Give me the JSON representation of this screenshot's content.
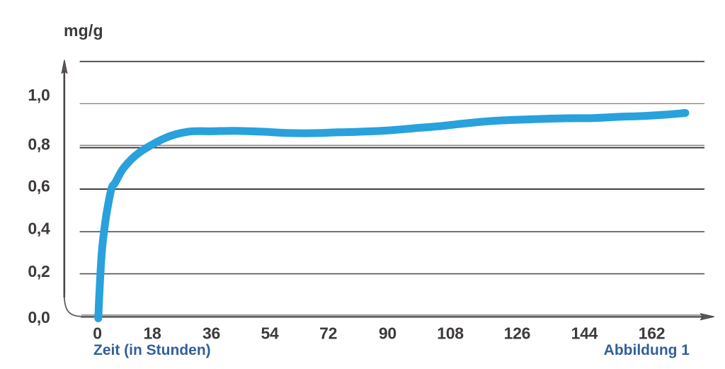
{
  "page": {
    "background_color": "#ffffff"
  },
  "chart_data": {
    "type": "line",
    "title": "",
    "ylabel": "mg/g",
    "xlabel": "Zeit (in Stunden)",
    "caption": "Abbildung 1",
    "x_ticks": [
      "0",
      "18",
      "36",
      "54",
      "72",
      "90",
      "108",
      "126",
      "144",
      "162"
    ],
    "x_tick_values": [
      0,
      18,
      36,
      54,
      72,
      90,
      108,
      126,
      144,
      162
    ],
    "y_ticks": [
      "0,0",
      "0,2",
      "0,4",
      "0,6",
      "0,8",
      "1,0"
    ],
    "y_tick_values": [
      0.0,
      0.2,
      0.4,
      0.6,
      0.8,
      1.0
    ],
    "xlim": [
      0,
      170
    ],
    "ylim": [
      0,
      1.2
    ],
    "grid": "horizontal",
    "gridline_values": [
      1.2,
      1.0,
      0.8,
      0.6,
      0.4,
      0.2,
      0.0
    ],
    "legend": "none",
    "series": [
      {
        "name": "mg/g",
        "color": "#29a1dc",
        "points": [
          [
            0.3,
            -0.009
          ],
          [
            0.6,
            0.09
          ],
          [
            1.0,
            0.2
          ],
          [
            1.5,
            0.31
          ],
          [
            2.2,
            0.4
          ],
          [
            3.1,
            0.49
          ],
          [
            4.6,
            0.6
          ],
          [
            5.9,
            0.63
          ],
          [
            8.7,
            0.7
          ],
          [
            13.7,
            0.77
          ],
          [
            22.1,
            0.84
          ],
          [
            29.0,
            0.869
          ],
          [
            36.3,
            0.871
          ],
          [
            43.3,
            0.873
          ],
          [
            51.6,
            0.869
          ],
          [
            59.2,
            0.863
          ],
          [
            66.9,
            0.862
          ],
          [
            74.9,
            0.866
          ],
          [
            82.0,
            0.869
          ],
          [
            90.3,
            0.875
          ],
          [
            97.6,
            0.885
          ],
          [
            105.0,
            0.895
          ],
          [
            112.6,
            0.909
          ],
          [
            119.1,
            0.919
          ],
          [
            125.9,
            0.925
          ],
          [
            132.7,
            0.929
          ],
          [
            139.2,
            0.932
          ],
          [
            146.4,
            0.933
          ],
          [
            153.4,
            0.939
          ],
          [
            160.0,
            0.943
          ],
          [
            165.7,
            0.949
          ],
          [
            171.0,
            0.957
          ]
        ]
      }
    ]
  },
  "colors": {
    "axis": "#4a4645",
    "grid_dark": "#4c4847",
    "grid_medium": "#55504e",
    "grid_light": "#7b6c63",
    "baseline_thin": "#5d6a7a",
    "tick_text": "#3e3a3b",
    "blue_text": "#31609a",
    "curve": "#29a1dc"
  }
}
